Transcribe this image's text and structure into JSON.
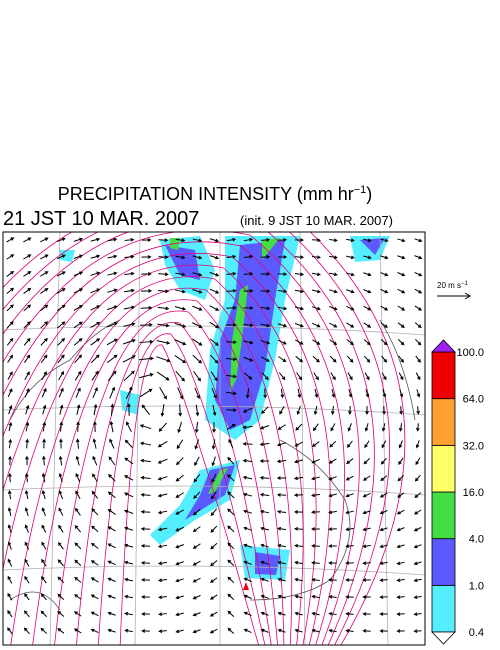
{
  "title": {
    "text": "PRECIPITATION INTENSITY (mm hr",
    "sup": "−1",
    "end": ")"
  },
  "valid_time": "21 JST 10 MAR. 2007",
  "init": "(init. 9 JST 10 MAR. 2007)",
  "vector_legend": {
    "text": "20 m s",
    "sup": "−1"
  },
  "colorbar": {
    "levels": [
      "0.4",
      "1.0",
      "4.0",
      "16.0",
      "32.0",
      "64.0",
      "100.0"
    ],
    "colors": [
      "#55eeff",
      "#5a5aff",
      "#44dd44",
      "#ffff66",
      "#ffa030",
      "#ee0000"
    ],
    "over_color": "#a020f0",
    "under_color": "#ffffff"
  }
}
